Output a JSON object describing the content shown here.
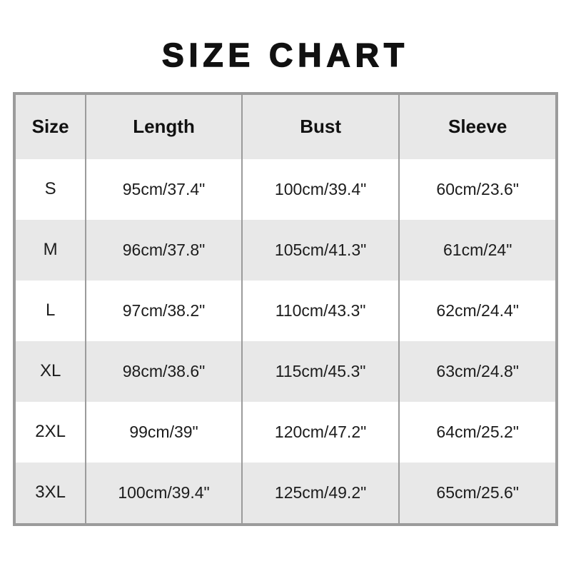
{
  "title": "SIZE CHART",
  "chart_data": {
    "type": "table",
    "title": "SIZE CHART",
    "columns": [
      "Size",
      "Length",
      "Bust",
      "Sleeve"
    ],
    "rows": [
      [
        "S",
        "95cm/37.4\"",
        "100cm/39.4\"",
        "60cm/23.6\""
      ],
      [
        "M",
        "96cm/37.8\"",
        "105cm/41.3\"",
        "61cm/24\""
      ],
      [
        "L",
        "97cm/38.2\"",
        "110cm/43.3\"",
        "62cm/24.4\""
      ],
      [
        "XL",
        "98cm/38.6\"",
        "115cm/45.3\"",
        "63cm/24.8\""
      ],
      [
        "2XL",
        "99cm/39\"",
        "120cm/47.2\"",
        "64cm/25.2\""
      ],
      [
        "3XL",
        "100cm/39.4\"",
        "125cm/49.2\"",
        "65cm/25.6\""
      ]
    ],
    "layout": {
      "grid": "vertical-dividers-only",
      "row_striping": "white-and-gray-alternating",
      "header_background": "gray"
    }
  },
  "colors": {
    "background": "#ffffff",
    "title_text": "#111111",
    "border": "#9b9b9b",
    "row_alt_background": "#e8e8e8",
    "cell_text": "#1c1c1c"
  }
}
